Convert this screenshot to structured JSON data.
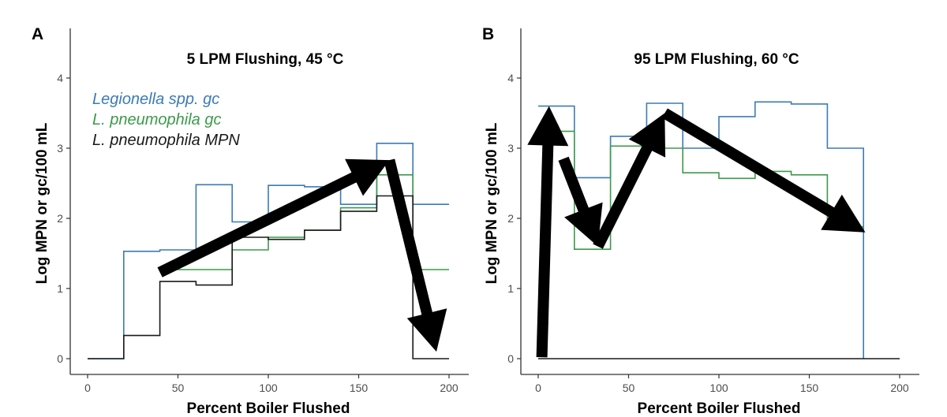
{
  "chart_data": [
    {
      "panel_label": "A",
      "type": "line",
      "step": true,
      "title": "5 LPM Flushing, 45 °C",
      "xlabel": "Percent Boiler Flushed",
      "ylabel": "Log MPN or gc/100 mL",
      "xlim": [
        0,
        200
      ],
      "ylim": [
        0,
        4
      ],
      "xticks": [
        0,
        50,
        100,
        150,
        200
      ],
      "yticks": [
        0,
        1,
        2,
        3,
        4
      ],
      "legend_position": "top-left",
      "series": [
        {
          "name": "Legionella spp. gc",
          "color": "#3b7bb5",
          "x": [
            0,
            20,
            40,
            60,
            80,
            100,
            120,
            140,
            160,
            180,
            200
          ],
          "y": [
            0,
            1.53,
            1.55,
            2.48,
            1.95,
            2.47,
            2.45,
            2.2,
            3.07,
            2.2,
            2.2
          ]
        },
        {
          "name": "L. pneumophila gc",
          "color": "#3c9a4a",
          "x": [
            40,
            60,
            80,
            100,
            120,
            140,
            160,
            180,
            200
          ],
          "y": [
            1.27,
            1.27,
            1.55,
            1.73,
            1.83,
            2.15,
            2.62,
            1.27,
            1.27
          ]
        },
        {
          "name": "L. pneumophila MPN",
          "color": "#1a1a1a",
          "x": [
            0,
            20,
            40,
            60,
            80,
            100,
            120,
            140,
            160,
            180,
            200
          ],
          "y": [
            0,
            0.33,
            1.1,
            1.05,
            1.73,
            1.7,
            1.83,
            2.1,
            2.32,
            0,
            0
          ]
        }
      ],
      "annotations": [
        {
          "type": "arrow",
          "from": [
            40,
            1.23
          ],
          "to": [
            167,
            2.83
          ]
        },
        {
          "type": "arrow",
          "from": [
            167,
            2.83
          ],
          "to": [
            193,
            0.1
          ]
        }
      ]
    },
    {
      "panel_label": "B",
      "type": "line",
      "step": true,
      "title": "95 LPM Flushing, 60 °C",
      "xlabel": "Percent Boiler Flushed",
      "ylabel": "Log MPN or gc/100 mL",
      "xlim": [
        0,
        200
      ],
      "ylim": [
        0,
        4
      ],
      "xticks": [
        0,
        50,
        100,
        150,
        200
      ],
      "yticks": [
        0,
        1,
        2,
        3,
        4
      ],
      "series": [
        {
          "name": "Legionella spp. gc",
          "color": "#3b7bb5",
          "x": [
            0,
            20,
            40,
            60,
            80,
            100,
            120,
            140,
            160,
            180,
            180
          ],
          "y": [
            3.6,
            2.58,
            3.17,
            3.64,
            3.0,
            3.45,
            3.66,
            3.63,
            3.0,
            3.0,
            0
          ]
        },
        {
          "name": "L. pneumophila gc",
          "color": "#3c9a4a",
          "x": [
            0,
            20,
            40,
            60,
            80,
            100,
            120,
            140,
            160,
            180
          ],
          "y": [
            3.24,
            1.56,
            3.03,
            3.0,
            2.65,
            2.57,
            2.67,
            2.62,
            1.88,
            1.88
          ]
        },
        {
          "name": "L. pneumophila MPN",
          "color": "#1a1a1a",
          "x": [
            0,
            200
          ],
          "y": [
            0,
            0
          ]
        }
      ],
      "annotations": [
        {
          "type": "arrow",
          "from": [
            2,
            0.02
          ],
          "to": [
            6,
            3.6
          ]
        },
        {
          "type": "arrow",
          "from": [
            14,
            2.85
          ],
          "to": [
            33,
            1.6
          ]
        },
        {
          "type": "arrow",
          "from": [
            33,
            1.6
          ],
          "to": [
            70,
            3.5
          ]
        },
        {
          "type": "arrow",
          "from": [
            70,
            3.5
          ],
          "to": [
            181,
            1.8
          ]
        }
      ]
    }
  ]
}
